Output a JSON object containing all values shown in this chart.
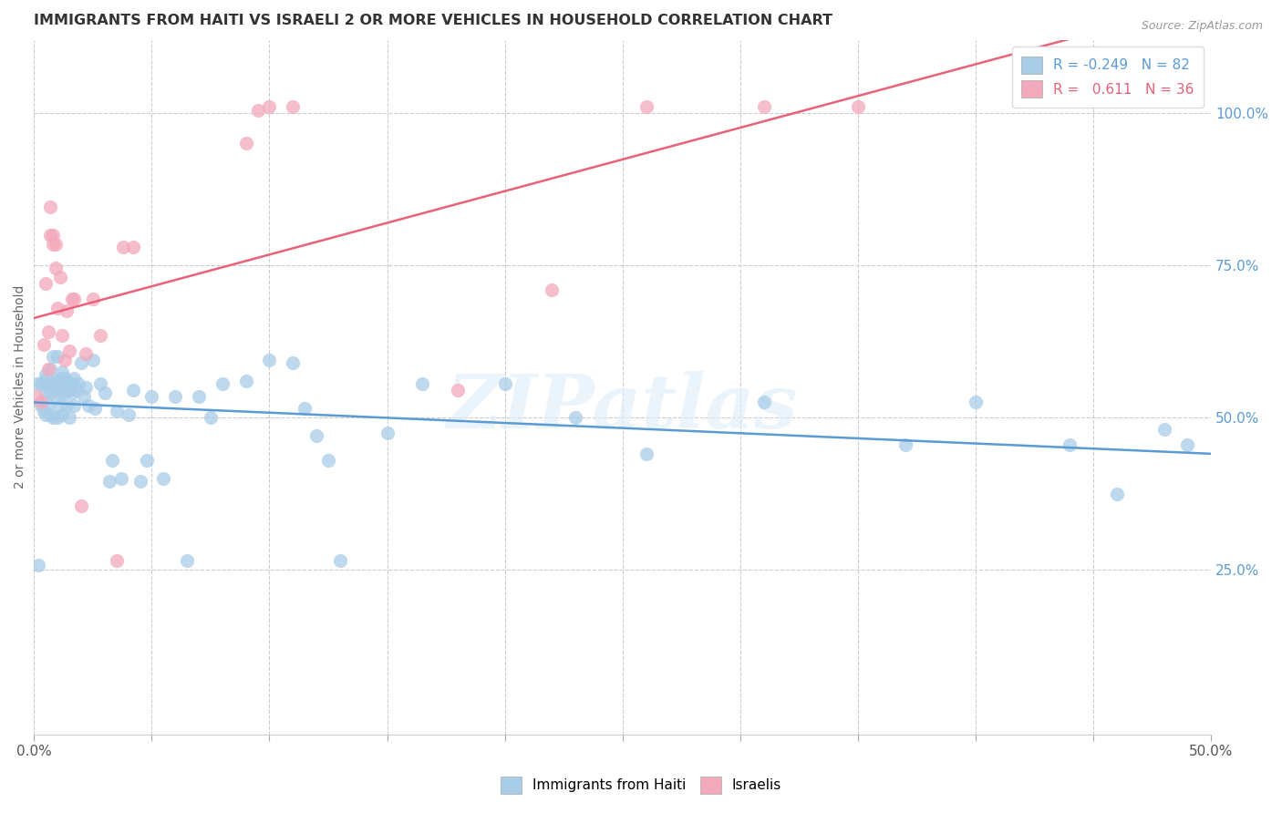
{
  "title": "IMMIGRANTS FROM HAITI VS ISRAELI 2 OR MORE VEHICLES IN HOUSEHOLD CORRELATION CHART",
  "source": "Source: ZipAtlas.com",
  "ylabel": "2 or more Vehicles in Household",
  "xlim": [
    0.0,
    0.5
  ],
  "ylim": [
    -0.02,
    1.12
  ],
  "yticks_right": [
    0.25,
    0.5,
    0.75,
    1.0
  ],
  "ytick_labels_right": [
    "25.0%",
    "50.0%",
    "75.0%",
    "100.0%"
  ],
  "legend_blue_label": "R = -0.249   N = 82",
  "legend_pink_label": "R =   0.611   N = 36",
  "blue_color": "#a8cde8",
  "pink_color": "#f4a8bb",
  "blue_line_color": "#5b9bd5",
  "pink_line_color": "#e8627a",
  "background_color": "#ffffff",
  "grid_color": "#cccccc",
  "watermark": "ZIPatlas",
  "blue_points_x": [
    0.001,
    0.002,
    0.003,
    0.003,
    0.004,
    0.004,
    0.005,
    0.005,
    0.005,
    0.006,
    0.006,
    0.007,
    0.007,
    0.007,
    0.008,
    0.008,
    0.008,
    0.009,
    0.009,
    0.01,
    0.01,
    0.01,
    0.011,
    0.011,
    0.012,
    0.012,
    0.012,
    0.013,
    0.013,
    0.014,
    0.014,
    0.015,
    0.015,
    0.015,
    0.016,
    0.016,
    0.017,
    0.017,
    0.018,
    0.019,
    0.02,
    0.021,
    0.022,
    0.023,
    0.025,
    0.026,
    0.028,
    0.03,
    0.032,
    0.033,
    0.035,
    0.037,
    0.04,
    0.042,
    0.045,
    0.048,
    0.05,
    0.055,
    0.06,
    0.065,
    0.07,
    0.075,
    0.08,
    0.09,
    0.1,
    0.11,
    0.115,
    0.12,
    0.125,
    0.13,
    0.15,
    0.165,
    0.2,
    0.23,
    0.26,
    0.31,
    0.37,
    0.4,
    0.44,
    0.46,
    0.48,
    0.49
  ],
  "blue_points_y": [
    0.555,
    0.258,
    0.52,
    0.555,
    0.51,
    0.56,
    0.54,
    0.505,
    0.57,
    0.52,
    0.555,
    0.54,
    0.505,
    0.58,
    0.5,
    0.555,
    0.6,
    0.535,
    0.56,
    0.5,
    0.555,
    0.6,
    0.52,
    0.565,
    0.54,
    0.505,
    0.575,
    0.54,
    0.565,
    0.52,
    0.56,
    0.545,
    0.5,
    0.555,
    0.54,
    0.555,
    0.52,
    0.565,
    0.545,
    0.555,
    0.59,
    0.535,
    0.55,
    0.52,
    0.595,
    0.515,
    0.555,
    0.54,
    0.395,
    0.43,
    0.51,
    0.4,
    0.505,
    0.545,
    0.395,
    0.43,
    0.535,
    0.4,
    0.535,
    0.265,
    0.535,
    0.5,
    0.555,
    0.56,
    0.595,
    0.59,
    0.515,
    0.47,
    0.43,
    0.265,
    0.475,
    0.555,
    0.555,
    0.5,
    0.44,
    0.525,
    0.455,
    0.525,
    0.455,
    0.375,
    0.48,
    0.455
  ],
  "pink_points_x": [
    0.001,
    0.003,
    0.004,
    0.005,
    0.006,
    0.006,
    0.007,
    0.007,
    0.008,
    0.008,
    0.009,
    0.009,
    0.01,
    0.011,
    0.012,
    0.013,
    0.014,
    0.015,
    0.016,
    0.017,
    0.02,
    0.022,
    0.025,
    0.028,
    0.035,
    0.038,
    0.042,
    0.09,
    0.095,
    0.1,
    0.11,
    0.18,
    0.22,
    0.26,
    0.31,
    0.35
  ],
  "pink_points_y": [
    0.535,
    0.525,
    0.62,
    0.72,
    0.58,
    0.64,
    0.8,
    0.845,
    0.785,
    0.8,
    0.785,
    0.745,
    0.68,
    0.73,
    0.635,
    0.595,
    0.675,
    0.61,
    0.695,
    0.695,
    0.355,
    0.605,
    0.695,
    0.635,
    0.265,
    0.78,
    0.78,
    0.95,
    1.005,
    1.01,
    1.01,
    0.545,
    0.71,
    1.01,
    1.01,
    1.01
  ],
  "legend_bottom_labels": [
    "Immigrants from Haiti",
    "Israelis"
  ]
}
